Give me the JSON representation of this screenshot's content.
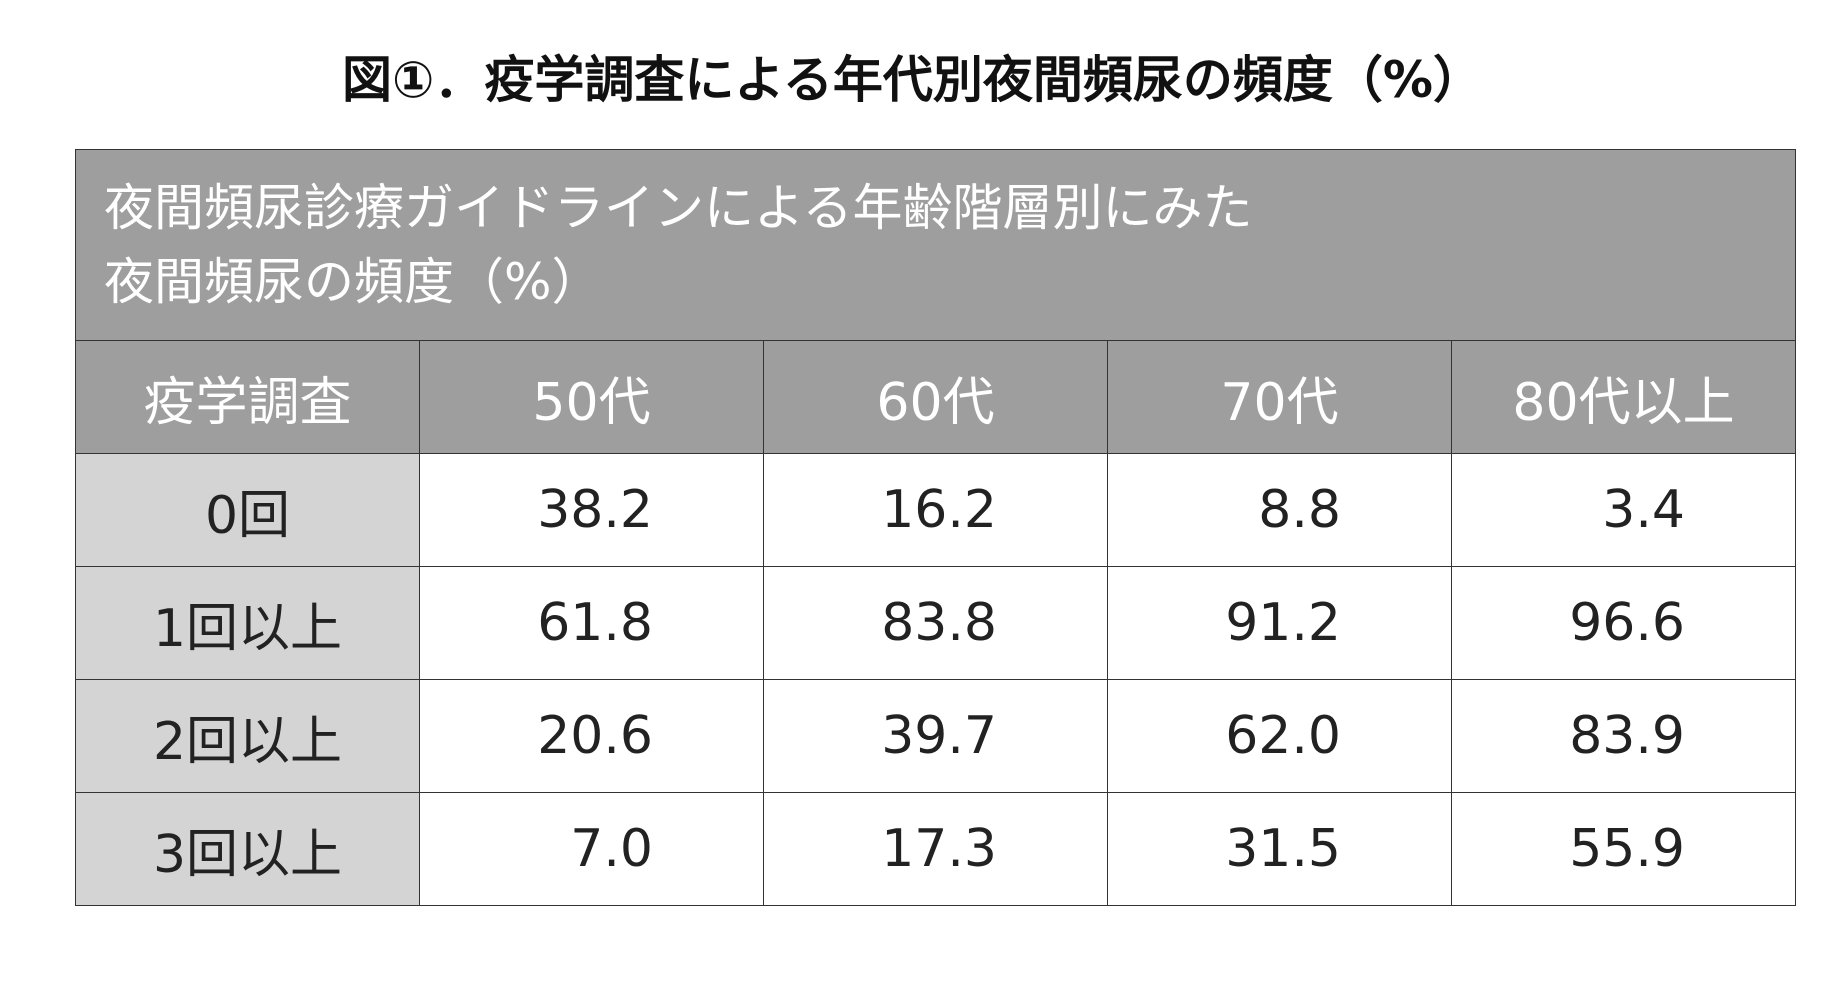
{
  "title": "図①．疫学調査による年代別夜間頻尿の頻度（%）",
  "table": {
    "caption": [
      "夜間頻尿診療ガイドラインによる年齢階層別にみた",
      "夜間頻尿の頻度（%）"
    ],
    "header": [
      "疫学調査",
      "50代",
      "60代",
      "70代",
      "80代以上"
    ],
    "rows": [
      [
        "0回",
        "38.2",
        "16.2",
        "8.8",
        "3.4"
      ],
      [
        "1回以上",
        "61.8",
        "83.8",
        "91.2",
        "96.6"
      ],
      [
        "2回以上",
        "20.6",
        "39.7",
        "62.0",
        "83.9"
      ],
      [
        "3回以上",
        "7.0",
        "17.3",
        "31.5",
        "55.9"
      ]
    ]
  }
}
